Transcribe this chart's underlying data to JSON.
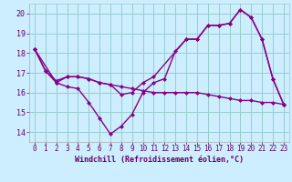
{
  "background_color": "#cceeff",
  "line_color": "#880088",
  "grid_color": "#99cccc",
  "xlabel": "Windchill (Refroidissement éolien,°C)",
  "xlabel_color": "#660066",
  "tick_color": "#660066",
  "xlim": [
    -0.5,
    23.5
  ],
  "ylim": [
    13.5,
    20.5
  ],
  "yticks": [
    14,
    15,
    16,
    17,
    18,
    19,
    20
  ],
  "xticks": [
    0,
    1,
    2,
    3,
    4,
    5,
    6,
    7,
    8,
    9,
    10,
    11,
    12,
    13,
    14,
    15,
    16,
    17,
    18,
    19,
    20,
    21,
    22,
    23
  ],
  "xtick_labels": [
    "0",
    "1",
    "2",
    "3",
    "4",
    "5",
    "6",
    "7",
    "8",
    "9",
    "10",
    "11",
    "12",
    "13",
    "14",
    "15",
    "16",
    "17",
    "18",
    "19",
    "20",
    "21",
    "22",
    "23"
  ],
  "series1_x": [
    0,
    1,
    2,
    3,
    4,
    5,
    6,
    7,
    8,
    9,
    10,
    11,
    12,
    13,
    14,
    15,
    16,
    17,
    18,
    19,
    20,
    21,
    22,
    23
  ],
  "series1_y": [
    18.2,
    17.1,
    16.5,
    16.3,
    16.2,
    15.5,
    14.7,
    13.9,
    14.3,
    14.9,
    16.0,
    16.5,
    16.7,
    18.1,
    18.7,
    18.7,
    19.4,
    19.4,
    19.5,
    20.2,
    19.8,
    18.7,
    16.7,
    15.4
  ],
  "series2_x": [
    0,
    1,
    2,
    3,
    4,
    5,
    6,
    7,
    8,
    9,
    10,
    11,
    12,
    13,
    14,
    15,
    16,
    17,
    18,
    19,
    20,
    21,
    22,
    23
  ],
  "series2_y": [
    18.2,
    17.1,
    16.6,
    16.8,
    16.8,
    16.7,
    16.5,
    16.4,
    16.3,
    16.2,
    16.1,
    16.0,
    16.0,
    16.0,
    16.0,
    16.0,
    15.9,
    15.8,
    15.7,
    15.6,
    15.6,
    15.5,
    15.5,
    15.4
  ],
  "series3_x": [
    0,
    2,
    3,
    4,
    5,
    6,
    7,
    8,
    9,
    10,
    11,
    14,
    15,
    16,
    17,
    18,
    19,
    20,
    21,
    22,
    23
  ],
  "series3_y": [
    18.2,
    16.5,
    16.8,
    16.8,
    16.7,
    16.5,
    16.4,
    15.9,
    16.0,
    16.5,
    16.8,
    18.7,
    18.7,
    19.4,
    19.4,
    19.5,
    20.2,
    19.8,
    18.7,
    16.7,
    15.4
  ],
  "marker_size": 2.5,
  "line_width": 1.0,
  "tick_fontsize": 5.5,
  "xlabel_fontsize": 6.0
}
